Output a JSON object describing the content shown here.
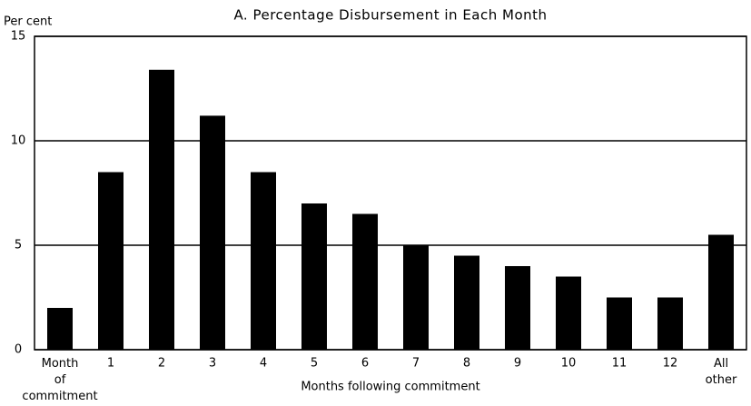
{
  "chart_data": {
    "type": "bar",
    "title": "A.  Percentage Disbursement in Each Month",
    "y_label": "Per cent",
    "x_label": "Months following commitment",
    "categories": [
      "Month of commitment",
      "1",
      "2",
      "3",
      "4",
      "5",
      "6",
      "7",
      "8",
      "9",
      "10",
      "11",
      "12",
      "All other"
    ],
    "values": [
      2.0,
      8.5,
      13.4,
      11.2,
      8.5,
      7.0,
      6.5,
      5.0,
      4.5,
      4.0,
      3.5,
      2.5,
      2.5,
      5.5
    ],
    "color": "#000000",
    "ylim": [
      0,
      15
    ],
    "yticks": [
      0,
      5,
      10,
      15
    ],
    "grid": true
  }
}
